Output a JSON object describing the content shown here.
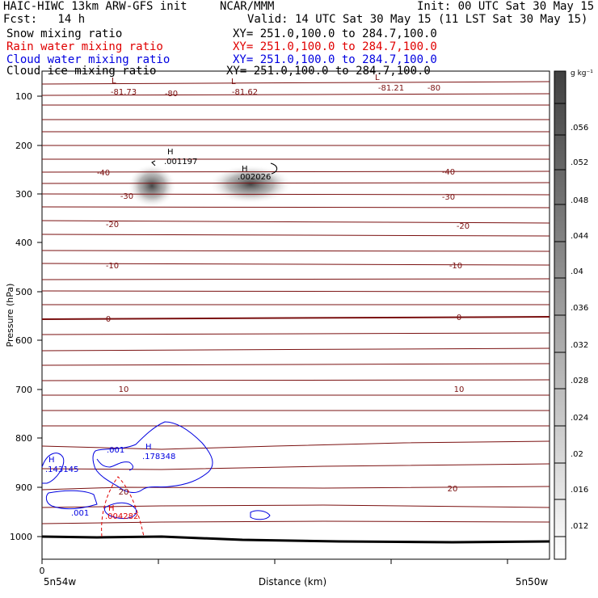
{
  "header": {
    "title_left": "HAIC-HIWC 13km ARW-GFS init",
    "org": "NCAR/MMM",
    "init": "Init: 00 UTC Sat 30 May 15",
    "fcst": "Fcst:   14 h",
    "valid": "Valid: 14 UTC Sat 30 May 15 (11 LST Sat 30 May 15)"
  },
  "fields": [
    {
      "name": "Snow mixing ratio",
      "xy": "XY= 251.0,100.0 to 284.7,100.0",
      "color": "#000000"
    },
    {
      "name": "Rain water mixing ratio",
      "xy": "XY= 251.0,100.0 to 284.7,100.0",
      "color": "#e00000"
    },
    {
      "name": "Cloud water mixing ratio",
      "xy": "XY= 251.0,100.0 to 284.7,100.0",
      "color": "#0000e0"
    },
    {
      "name": "Cloud ice mixing ratio",
      "xy": "XY= 251.0,100.0 to 284.7,100.0",
      "color": "#000000"
    }
  ],
  "axes": {
    "ylabel": "Pressure (hPa)",
    "xlabel": "Distance (km)",
    "x_left": "5n54w",
    "x_right": "5n50w",
    "x_zero": "0",
    "y_ticks": [
      "100",
      "200",
      "300",
      "400",
      "500",
      "600",
      "700",
      "800",
      "900",
      "1000"
    ]
  },
  "colorbar": {
    "unit": "g kg⁻¹",
    "labels": [
      ".056",
      ".052",
      ".048",
      ".044",
      ".04",
      ".036",
      ".032",
      ".028",
      ".024",
      ".02",
      ".016",
      ".012"
    ]
  },
  "contours": {
    "temp_labels": [
      "-81.73",
      "-80",
      "-81.62",
      "-81.21",
      "-80",
      "-40",
      "-40",
      "-30",
      "-30",
      "-20",
      "-20",
      "-10",
      "-10",
      "0",
      "0",
      "10",
      "10",
      "20",
      "20"
    ],
    "extrema": [
      "L",
      "L",
      "L",
      "H",
      ".001197",
      "H",
      ".002026",
      "H",
      ".143145",
      "H",
      ".178348",
      ".001",
      ".001",
      "H",
      ".004282"
    ]
  },
  "colors": {
    "temp": "#7a1010",
    "cloud": "#0000e0",
    "rain": "#e00000"
  }
}
